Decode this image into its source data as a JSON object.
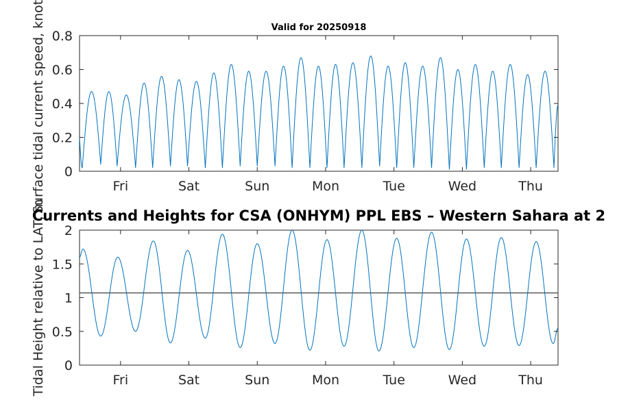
{
  "chart_data": [
    {
      "type": "line",
      "title": "Valid for 20250918",
      "xlabel": "",
      "ylabel": "Surface tidal current speed, knots",
      "xlim": [
        0,
        7
      ],
      "ylim": [
        0,
        0.8
      ],
      "yticks": [
        "0",
        "0.2",
        "0.4",
        "0.6",
        "0.8"
      ],
      "xticks": [
        {
          "x": 0.6,
          "label": "Fri"
        },
        {
          "x": 1.6,
          "label": "Sat"
        },
        {
          "x": 2.6,
          "label": "Sun"
        },
        {
          "x": 3.6,
          "label": "Mon"
        },
        {
          "x": 4.6,
          "label": "Tue"
        },
        {
          "x": 5.6,
          "label": "Wed"
        },
        {
          "x": 6.6,
          "label": "Thu"
        }
      ],
      "grid": false,
      "line_color": "#0072BD",
      "series": [
        {
          "peaks": [
            {
              "x": 0.17,
              "y": 0.47
            },
            {
              "x": 0.43,
              "y": 0.47
            },
            {
              "x": 0.68,
              "y": 0.45
            },
            {
              "x": 0.95,
              "y": 0.52
            },
            {
              "x": 1.2,
              "y": 0.56
            },
            {
              "x": 1.46,
              "y": 0.54
            },
            {
              "x": 1.71,
              "y": 0.53
            },
            {
              "x": 1.96,
              "y": 0.58
            },
            {
              "x": 2.22,
              "y": 0.63
            },
            {
              "x": 2.47,
              "y": 0.59
            },
            {
              "x": 2.73,
              "y": 0.59
            },
            {
              "x": 2.98,
              "y": 0.62
            },
            {
              "x": 3.24,
              "y": 0.67
            },
            {
              "x": 3.49,
              "y": 0.62
            },
            {
              "x": 3.74,
              "y": 0.63
            },
            {
              "x": 4.0,
              "y": 0.64
            },
            {
              "x": 4.26,
              "y": 0.68
            },
            {
              "x": 4.51,
              "y": 0.62
            },
            {
              "x": 4.77,
              "y": 0.64
            },
            {
              "x": 5.03,
              "y": 0.62
            },
            {
              "x": 5.28,
              "y": 0.67
            },
            {
              "x": 5.53,
              "y": 0.6
            },
            {
              "x": 5.78,
              "y": 0.63
            },
            {
              "x": 6.04,
              "y": 0.59
            },
            {
              "x": 6.3,
              "y": 0.63
            },
            {
              "x": 6.55,
              "y": 0.57
            },
            {
              "x": 6.81,
              "y": 0.59
            }
          ],
          "troughs": [
            {
              "x": 0.04,
              "y": 0.02
            },
            {
              "x": 0.31,
              "y": 0.04
            },
            {
              "x": 0.55,
              "y": 0.03
            },
            {
              "x": 0.82,
              "y": 0.02
            },
            {
              "x": 1.07,
              "y": 0.02
            },
            {
              "x": 1.33,
              "y": 0.03
            },
            {
              "x": 1.58,
              "y": 0.03
            },
            {
              "x": 1.84,
              "y": 0.02
            },
            {
              "x": 2.09,
              "y": 0.02
            },
            {
              "x": 2.35,
              "y": 0.03
            },
            {
              "x": 2.6,
              "y": 0.03
            },
            {
              "x": 2.86,
              "y": 0.03
            },
            {
              "x": 3.11,
              "y": 0.02
            },
            {
              "x": 3.37,
              "y": 0.02
            },
            {
              "x": 3.62,
              "y": 0.02
            },
            {
              "x": 3.87,
              "y": 0.02
            },
            {
              "x": 4.13,
              "y": 0.02
            },
            {
              "x": 4.39,
              "y": 0.03
            },
            {
              "x": 4.64,
              "y": 0.02
            },
            {
              "x": 4.89,
              "y": 0.02
            },
            {
              "x": 5.15,
              "y": 0.02
            },
            {
              "x": 5.41,
              "y": 0.01
            },
            {
              "x": 5.66,
              "y": 0.01
            },
            {
              "x": 5.92,
              "y": 0.02
            },
            {
              "x": 6.17,
              "y": 0.02
            },
            {
              "x": 6.43,
              "y": 0.02
            },
            {
              "x": 6.68,
              "y": 0.02
            },
            {
              "x": 6.94,
              "y": 0.02
            }
          ],
          "start": {
            "x": 0,
            "y": 0.2
          },
          "end": {
            "x": 7,
            "y": 0.39
          }
        }
      ]
    },
    {
      "type": "line",
      "title": "Currents and Heights for CSA (ONHYM) PPL EBS  – Western Sahara at 2",
      "xlabel": "",
      "ylabel": "Tidal Height relative to LAT, m",
      "xlim": [
        0,
        7
      ],
      "ylim": [
        0,
        2
      ],
      "yticks": [
        "0",
        "0.5",
        "1",
        "1.5",
        "2"
      ],
      "xticks": [
        {
          "x": 0.6,
          "label": "Fri"
        },
        {
          "x": 1.6,
          "label": "Sat"
        },
        {
          "x": 2.6,
          "label": "Sun"
        },
        {
          "x": 3.6,
          "label": "Mon"
        },
        {
          "x": 4.6,
          "label": "Tue"
        },
        {
          "x": 5.6,
          "label": "Wed"
        },
        {
          "x": 6.6,
          "label": "Thu"
        }
      ],
      "grid": false,
      "reference_line": {
        "y": 1.07,
        "color": "#404040"
      },
      "line_color": "#0072BD",
      "series": [
        {
          "extrema": [
            {
              "x": 0.05,
              "y": 1.72
            },
            {
              "x": 0.31,
              "y": 0.43
            },
            {
              "x": 0.56,
              "y": 1.6
            },
            {
              "x": 0.82,
              "y": 0.5
            },
            {
              "x": 1.08,
              "y": 1.84
            },
            {
              "x": 1.33,
              "y": 0.33
            },
            {
              "x": 1.58,
              "y": 1.7
            },
            {
              "x": 1.84,
              "y": 0.4
            },
            {
              "x": 2.09,
              "y": 1.94
            },
            {
              "x": 2.35,
              "y": 0.26
            },
            {
              "x": 2.6,
              "y": 1.8
            },
            {
              "x": 2.86,
              "y": 0.32
            },
            {
              "x": 3.11,
              "y": 2.0
            },
            {
              "x": 3.37,
              "y": 0.22
            },
            {
              "x": 3.62,
              "y": 1.86
            },
            {
              "x": 3.87,
              "y": 0.28
            },
            {
              "x": 4.13,
              "y": 2.0
            },
            {
              "x": 4.38,
              "y": 0.21
            },
            {
              "x": 4.64,
              "y": 1.88
            },
            {
              "x": 4.89,
              "y": 0.26
            },
            {
              "x": 5.15,
              "y": 1.97
            },
            {
              "x": 5.41,
              "y": 0.23
            },
            {
              "x": 5.66,
              "y": 1.87
            },
            {
              "x": 5.92,
              "y": 0.28
            },
            {
              "x": 6.17,
              "y": 1.89
            },
            {
              "x": 6.43,
              "y": 0.29
            },
            {
              "x": 6.68,
              "y": 1.83
            },
            {
              "x": 6.93,
              "y": 0.32
            }
          ],
          "start": {
            "x": 0,
            "y": 1.6
          },
          "end": {
            "x": 7,
            "y": 0.55
          }
        }
      ]
    }
  ]
}
